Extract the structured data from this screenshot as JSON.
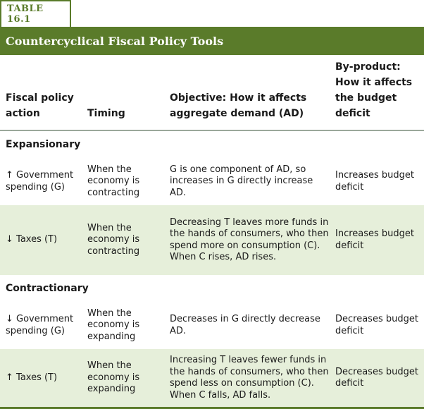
{
  "table_label": "TABLE 16.1",
  "title": "Countercyclical Fiscal Policy Tools",
  "columns": [
    "Fiscal policy action",
    "Timing",
    "Objective: How it affects aggregate demand (AD)",
    "By-product: How it affects the budget deficit"
  ],
  "sections": [
    {
      "name": "Expansionary",
      "rows": [
        {
          "action": "↑ Government spending (G)",
          "timing": "When the economy is contracting",
          "objective": "G is one component of AD, so increases in G directly increase AD.",
          "byproduct": "Increases budget deficit"
        },
        {
          "action": "↓ Taxes (T)",
          "timing": "When the economy is contracting",
          "objective": "Decreasing T leaves more funds in the hands of consumers, who then spend more on consumption (C). When C rises, AD rises.",
          "byproduct": "Increases budget deficit"
        }
      ]
    },
    {
      "name": "Contractionary",
      "rows": [
        {
          "action": "↓ Government spending (G)",
          "timing": "When the economy is expanding",
          "objective": "Decreases in G directly decrease AD.",
          "byproduct": "Decreases budget deficit"
        },
        {
          "action": "↑ Taxes (T)",
          "timing": "When the economy is expanding",
          "objective": "Increasing T leaves fewer funds in the hands of consumers, who then spend less on consumption (C). When C falls, AD falls.",
          "byproduct": "Decreases budget deficit"
        }
      ]
    }
  ]
}
